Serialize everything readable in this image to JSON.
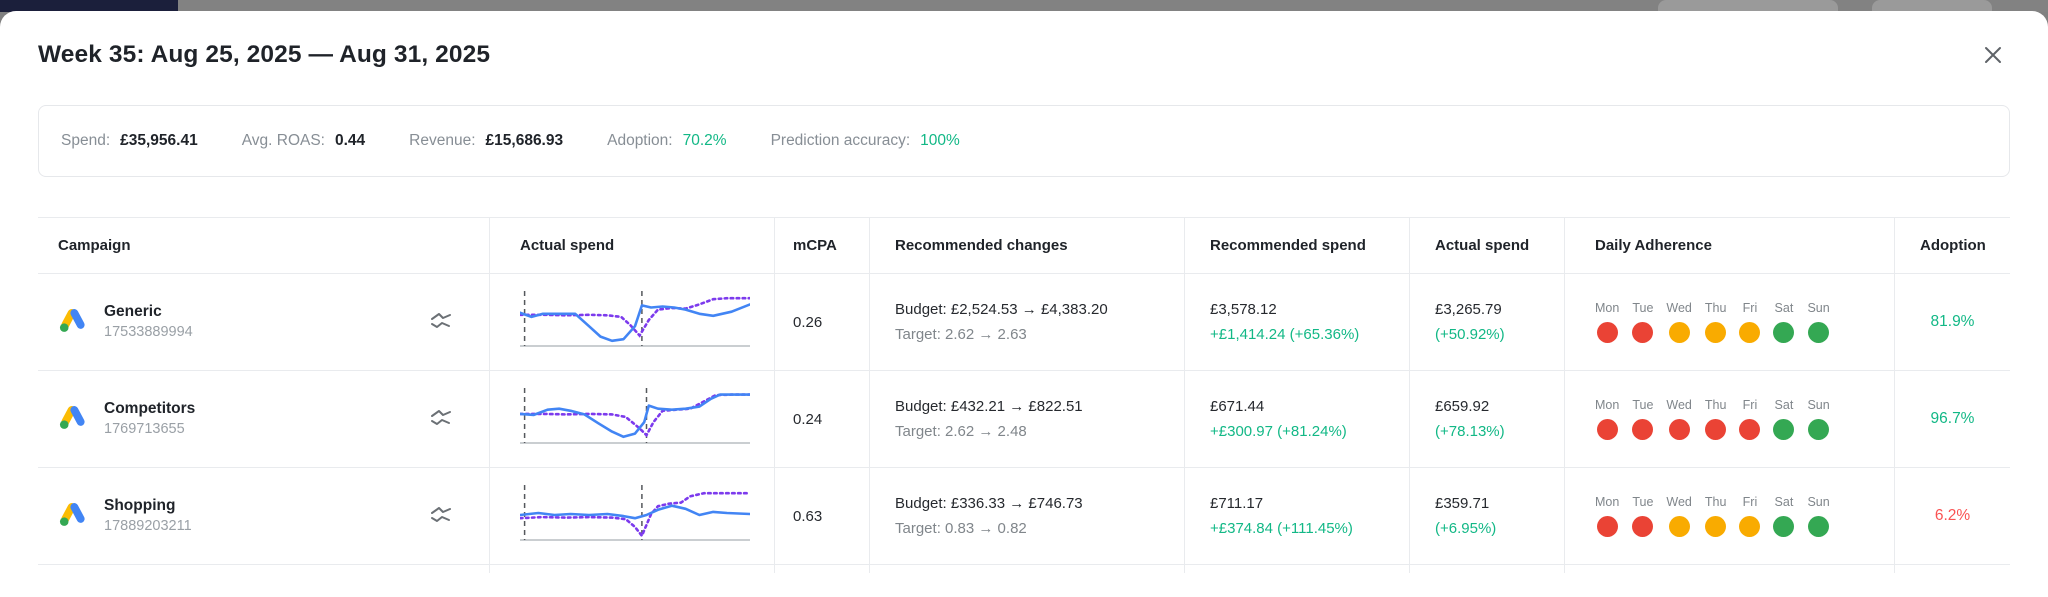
{
  "colors": {
    "green_text": "#12b886",
    "red_text": "#fa5252",
    "dark_text": "#26292e",
    "blue_line": "#4285f4",
    "purple_line": "#7c3aed",
    "dots": {
      "red": "#ea4335",
      "orange": "#f9ab00",
      "green": "#34a853"
    }
  },
  "modal": {
    "title": "Week 35: Aug 25, 2025 — Aug 31, 2025",
    "close_icon": "close",
    "stats": [
      {
        "label": "Spend:",
        "value": "£35,956.41",
        "color": "#1f2329",
        "weight": "700"
      },
      {
        "label": "Avg. ROAS:",
        "value": "0.44",
        "color": "#1f2329",
        "weight": "700"
      },
      {
        "label": "Revenue:",
        "value": "£15,686.93",
        "color": "#1f2329",
        "weight": "700"
      },
      {
        "label": "Adoption:",
        "value": "70.2%",
        "color": "#12b886",
        "weight": "400"
      },
      {
        "label": "Prediction accuracy:",
        "value": "100%",
        "color": "#12b886",
        "weight": "400"
      }
    ]
  },
  "table": {
    "headers": [
      "Campaign",
      "Actual spend",
      "mCPA",
      "Recommended changes",
      "Recommended spend",
      "Actual spend",
      "Daily Adherence",
      "Adoption"
    ],
    "rows": [
      {
        "name": "Generic",
        "id": "17533889994",
        "mcpa": "0.26",
        "budget": "Budget: £2,524.53 → £4,383.20",
        "target": "Target: 2.62 → 2.63",
        "rec_spend": "£3,578.12",
        "rec_delta": "+£1,414.24 (+65.36%)",
        "act_spend": "£3,265.79",
        "act_delta": "(+50.92%)",
        "adherence": [
          [
            "Mon",
            "red"
          ],
          [
            "Tue",
            "red"
          ],
          [
            "Wed",
            "orange"
          ],
          [
            "Thu",
            "orange"
          ],
          [
            "Fri",
            "orange"
          ],
          [
            "Sat",
            "green"
          ],
          [
            "Sun",
            "green"
          ]
        ],
        "adoption": "81.9%",
        "adoption_color": "#12b886",
        "spark": {
          "vlines": [
            0.02,
            0.53
          ],
          "blue": [
            [
              0,
              0.36
            ],
            [
              0.05,
              0.44
            ],
            [
              0.1,
              0.38
            ],
            [
              0.2,
              0.38
            ],
            [
              0.24,
              0.38
            ],
            [
              0.3,
              0.62
            ],
            [
              0.35,
              0.82
            ],
            [
              0.4,
              0.9
            ],
            [
              0.45,
              0.87
            ],
            [
              0.5,
              0.62
            ],
            [
              0.53,
              0.22
            ],
            [
              0.57,
              0.26
            ],
            [
              0.62,
              0.24
            ],
            [
              0.67,
              0.26
            ],
            [
              0.72,
              0.3
            ],
            [
              0.78,
              0.38
            ],
            [
              0.84,
              0.42
            ],
            [
              0.92,
              0.34
            ],
            [
              1,
              0.2
            ]
          ],
          "purple": [
            [
              0,
              0.4
            ],
            [
              0.1,
              0.4
            ],
            [
              0.2,
              0.41
            ],
            [
              0.3,
              0.4
            ],
            [
              0.38,
              0.41
            ],
            [
              0.44,
              0.44
            ],
            [
              0.48,
              0.6
            ],
            [
              0.52,
              0.8
            ],
            [
              0.56,
              0.5
            ],
            [
              0.6,
              0.3
            ],
            [
              0.66,
              0.27
            ],
            [
              0.72,
              0.28
            ],
            [
              0.78,
              0.2
            ],
            [
              0.84,
              0.1
            ],
            [
              0.9,
              0.08
            ],
            [
              1,
              0.08
            ]
          ]
        }
      },
      {
        "name": "Competitors",
        "id": "1769713655",
        "mcpa": "0.24",
        "budget": "Budget: £432.21 → £822.51",
        "target": "Target: 2.62 → 2.48",
        "rec_spend": "£671.44",
        "rec_delta": "+£300.97 (+81.24%)",
        "act_spend": "£659.92",
        "act_delta": "(+78.13%)",
        "adherence": [
          [
            "Mon",
            "red"
          ],
          [
            "Tue",
            "red"
          ],
          [
            "Wed",
            "red"
          ],
          [
            "Thu",
            "red"
          ],
          [
            "Fri",
            "red"
          ],
          [
            "Sat",
            "green"
          ],
          [
            "Sun",
            "green"
          ]
        ],
        "adoption": "96.7%",
        "adoption_color": "#12b886",
        "spark": {
          "vlines": [
            0.02,
            0.55
          ],
          "blue": [
            [
              0,
              0.44
            ],
            [
              0.06,
              0.46
            ],
            [
              0.12,
              0.36
            ],
            [
              0.17,
              0.34
            ],
            [
              0.22,
              0.38
            ],
            [
              0.28,
              0.45
            ],
            [
              0.34,
              0.62
            ],
            [
              0.4,
              0.78
            ],
            [
              0.45,
              0.88
            ],
            [
              0.5,
              0.82
            ],
            [
              0.54,
              0.6
            ],
            [
              0.56,
              0.28
            ],
            [
              0.6,
              0.34
            ],
            [
              0.66,
              0.36
            ],
            [
              0.72,
              0.34
            ],
            [
              0.78,
              0.3
            ],
            [
              0.83,
              0.15
            ],
            [
              0.87,
              0.07
            ],
            [
              1,
              0.07
            ]
          ],
          "purple": [
            [
              0,
              0.44
            ],
            [
              0.1,
              0.44
            ],
            [
              0.2,
              0.45
            ],
            [
              0.3,
              0.44
            ],
            [
              0.4,
              0.45
            ],
            [
              0.46,
              0.5
            ],
            [
              0.52,
              0.72
            ],
            [
              0.55,
              0.85
            ],
            [
              0.58,
              0.6
            ],
            [
              0.62,
              0.38
            ],
            [
              0.68,
              0.36
            ],
            [
              0.74,
              0.34
            ],
            [
              0.8,
              0.2
            ],
            [
              0.85,
              0.08
            ],
            [
              0.92,
              0.07
            ],
            [
              1,
              0.07
            ]
          ]
        }
      },
      {
        "name": "Shopping",
        "id": "17889203211",
        "mcpa": "0.63",
        "budget": "Budget: £336.33 → £746.73",
        "target": "Target: 0.83 → 0.82",
        "rec_spend": "£711.17",
        "rec_delta": "+£374.84 (+111.45%)",
        "act_spend": "£359.71",
        "act_delta": "(+6.95%)",
        "adherence": [
          [
            "Mon",
            "red"
          ],
          [
            "Tue",
            "red"
          ],
          [
            "Wed",
            "orange"
          ],
          [
            "Thu",
            "orange"
          ],
          [
            "Fri",
            "orange"
          ],
          [
            "Sat",
            "green"
          ],
          [
            "Sun",
            "green"
          ]
        ],
        "adoption": "6.2%",
        "adoption_color": "#fa5252",
        "spark": {
          "vlines": [
            0.02,
            0.53
          ],
          "blue": [
            [
              0,
              0.52
            ],
            [
              0.08,
              0.48
            ],
            [
              0.15,
              0.52
            ],
            [
              0.22,
              0.5
            ],
            [
              0.3,
              0.52
            ],
            [
              0.38,
              0.5
            ],
            [
              0.45,
              0.54
            ],
            [
              0.5,
              0.58
            ],
            [
              0.55,
              0.52
            ],
            [
              0.6,
              0.42
            ],
            [
              0.66,
              0.34
            ],
            [
              0.72,
              0.4
            ],
            [
              0.78,
              0.52
            ],
            [
              0.84,
              0.46
            ],
            [
              0.9,
              0.48
            ],
            [
              1,
              0.5
            ]
          ],
          "purple": [
            [
              0,
              0.58
            ],
            [
              0.1,
              0.56
            ],
            [
              0.2,
              0.57
            ],
            [
              0.3,
              0.56
            ],
            [
              0.4,
              0.57
            ],
            [
              0.46,
              0.6
            ],
            [
              0.5,
              0.75
            ],
            [
              0.53,
              0.92
            ],
            [
              0.57,
              0.5
            ],
            [
              0.6,
              0.35
            ],
            [
              0.65,
              0.3
            ],
            [
              0.7,
              0.28
            ],
            [
              0.74,
              0.16
            ],
            [
              0.8,
              0.1
            ],
            [
              0.9,
              0.1
            ],
            [
              1,
              0.1
            ]
          ]
        }
      }
    ]
  }
}
